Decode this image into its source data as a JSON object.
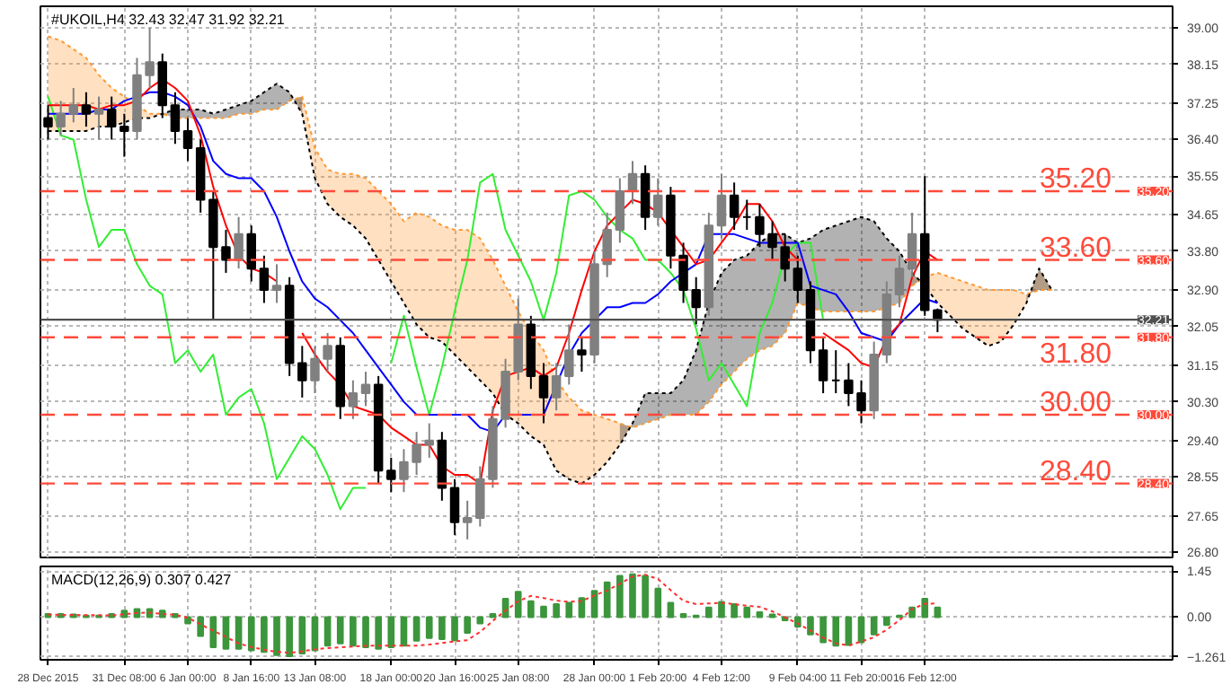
{
  "chart_data": [
    {
      "type": "candlestick",
      "title": "#UKOIL,H4 32.43 32.47 31.92 32.21",
      "categories": [
        null,
        null,
        null,
        null,
        null,
        null,
        null,
        null,
        null,
        null,
        null,
        null,
        null,
        null,
        null,
        null,
        null,
        null,
        null,
        null,
        null,
        null,
        null,
        null,
        null,
        null,
        null,
        null,
        null,
        null,
        null,
        null,
        null,
        null,
        null,
        null,
        null,
        null,
        null,
        null,
        null,
        null,
        null,
        null,
        null,
        null,
        null,
        null,
        null,
        null,
        null,
        null,
        null,
        null,
        null,
        null,
        null,
        null,
        null,
        null,
        null,
        null,
        null,
        null,
        null,
        null,
        null,
        null,
        null,
        null,
        null,
        null,
        null,
        null,
        null,
        null,
        null,
        null,
        null,
        null,
        null,
        null,
        null,
        null,
        null,
        null,
        null,
        null,
        null
      ],
      "ohlc": [
        [
          36.9,
          37.2,
          36.4,
          36.7
        ],
        [
          36.7,
          37.3,
          36.5,
          37.0
        ],
        [
          37.0,
          37.6,
          36.8,
          37.2
        ],
        [
          37.2,
          37.5,
          36.7,
          37.0
        ],
        [
          37.0,
          37.4,
          36.4,
          37.1
        ],
        [
          37.1,
          37.4,
          36.4,
          36.7
        ],
        [
          36.7,
          37.0,
          36.0,
          36.6
        ],
        [
          36.6,
          38.3,
          36.4,
          37.9
        ],
        [
          37.9,
          39.0,
          37.6,
          38.2
        ],
        [
          38.2,
          38.4,
          36.9,
          37.2
        ],
        [
          37.2,
          37.5,
          36.3,
          36.6
        ],
        [
          36.6,
          36.9,
          35.9,
          36.2
        ],
        [
          36.2,
          36.4,
          34.7,
          35.0
        ],
        [
          35.0,
          35.2,
          32.2,
          33.9
        ],
        [
          33.9,
          34.3,
          33.3,
          33.6
        ],
        [
          33.6,
          34.6,
          33.4,
          34.2
        ],
        [
          34.2,
          34.4,
          33.1,
          33.4
        ],
        [
          33.4,
          33.7,
          32.6,
          32.9
        ],
        [
          32.9,
          33.5,
          32.6,
          33.0
        ],
        [
          33.0,
          33.2,
          30.9,
          31.2
        ],
        [
          31.2,
          31.6,
          30.4,
          30.8
        ],
        [
          30.8,
          31.6,
          30.5,
          31.3
        ],
        [
          31.3,
          31.9,
          31.0,
          31.6
        ],
        [
          31.6,
          31.8,
          29.9,
          30.2
        ],
        [
          30.2,
          30.8,
          29.9,
          30.5
        ],
        [
          30.5,
          31.0,
          30.2,
          30.7
        ],
        [
          30.7,
          30.9,
          28.4,
          28.7
        ],
        [
          28.7,
          29.0,
          28.2,
          28.5
        ],
        [
          28.5,
          29.2,
          28.2,
          28.9
        ],
        [
          28.9,
          29.6,
          28.6,
          29.3
        ],
        [
          29.3,
          29.8,
          29.0,
          29.4
        ],
        [
          29.4,
          29.6,
          28.0,
          28.3
        ],
        [
          28.3,
          28.5,
          27.2,
          27.5
        ],
        [
          27.5,
          28.0,
          27.1,
          27.6
        ],
        [
          27.6,
          28.8,
          27.4,
          28.5
        ],
        [
          28.5,
          30.2,
          28.3,
          29.9
        ],
        [
          29.9,
          31.3,
          29.7,
          31.0
        ],
        [
          31.0,
          32.7,
          30.8,
          32.1
        ],
        [
          32.1,
          32.3,
          30.6,
          30.9
        ],
        [
          30.9,
          31.2,
          29.8,
          30.4
        ],
        [
          30.4,
          31.2,
          30.1,
          30.9
        ],
        [
          30.9,
          32.1,
          30.7,
          31.5
        ],
        [
          31.5,
          31.8,
          31.0,
          31.4
        ],
        [
          31.4,
          33.8,
          31.2,
          33.5
        ],
        [
          33.5,
          34.7,
          33.2,
          34.3
        ],
        [
          34.3,
          35.5,
          34.0,
          35.2
        ],
        [
          35.2,
          35.9,
          34.9,
          35.6
        ],
        [
          35.6,
          35.8,
          34.3,
          34.6
        ],
        [
          34.6,
          35.5,
          34.4,
          35.1
        ],
        [
          35.1,
          35.3,
          33.4,
          33.7
        ],
        [
          33.7,
          34.0,
          32.6,
          32.9
        ],
        [
          32.9,
          33.2,
          32.1,
          32.5
        ],
        [
          32.5,
          34.7,
          32.3,
          34.4
        ],
        [
          34.4,
          35.6,
          34.1,
          35.1
        ],
        [
          35.1,
          35.4,
          34.3,
          34.6
        ],
        [
          34.6,
          35.0,
          34.3,
          34.6
        ],
        [
          34.6,
          34.9,
          33.9,
          34.2
        ],
        [
          34.2,
          34.5,
          33.6,
          33.9
        ],
        [
          33.9,
          34.2,
          33.1,
          33.4
        ],
        [
          33.4,
          33.7,
          32.6,
          32.9
        ],
        [
          32.9,
          33.1,
          31.2,
          31.5
        ],
        [
          31.5,
          31.8,
          30.5,
          30.8
        ],
        [
          30.8,
          31.5,
          30.5,
          30.8
        ],
        [
          30.8,
          31.2,
          30.2,
          30.5
        ],
        [
          30.5,
          30.8,
          29.8,
          30.1
        ],
        [
          30.1,
          31.7,
          29.9,
          31.4
        ],
        [
          31.4,
          33.1,
          31.2,
          32.8
        ],
        [
          32.8,
          33.7,
          32.5,
          33.4
        ],
        [
          33.4,
          34.7,
          33.2,
          34.2
        ],
        [
          34.2,
          35.55,
          32.3,
          32.43
        ],
        [
          32.43,
          32.47,
          31.92,
          32.21
        ],
        null,
        null,
        null,
        null,
        null,
        null,
        null,
        null,
        null,
        null,
        null,
        null,
        null,
        null,
        null,
        null,
        null,
        null
      ],
      "colors": [
        "#000000",
        "#808080",
        "#808080",
        "#000000",
        "#808080",
        "#000000",
        "#000000",
        "#808080",
        "#808080",
        "#000000",
        "#000000",
        "#000000",
        "#000000",
        "#000000",
        "#000000",
        "#808080",
        "#000000",
        "#000000",
        "#808080",
        "#000000",
        "#000000",
        "#808080",
        "#808080",
        "#000000",
        "#808080",
        "#808080",
        "#000000",
        "#000000",
        "#808080",
        "#808080",
        "#808080",
        "#000000",
        "#000000",
        "#808080",
        "#808080",
        "#808080",
        "#808080",
        "#808080",
        "#000000",
        "#000000",
        "#808080",
        "#808080",
        "#000000",
        "#808080",
        "#808080",
        "#808080",
        "#808080",
        "#000000",
        "#808080",
        "#000000",
        "#000000",
        "#000000",
        "#808080",
        "#808080",
        "#000000",
        "#000000",
        "#000000",
        "#000000",
        "#000000",
        "#000000",
        "#000000",
        "#000000",
        "#000000",
        "#000000",
        "#000000",
        "#808080",
        "#808080",
        "#808080",
        "#808080",
        "#000000",
        "#000000",
        null,
        null,
        null,
        null,
        null,
        null,
        null,
        null,
        null,
        null,
        null,
        null,
        null,
        null,
        null,
        null,
        null,
        null
      ],
      "series": [
        {
          "type": "line",
          "color": "#ff9933",
          "line_style": "dotted",
          "upper": [
            38.8,
            38.7,
            38.5,
            38.3,
            37.9,
            37.6,
            37.4,
            37.2,
            37.0,
            37.0,
            null,
            null,
            null,
            null,
            null,
            null,
            null,
            null,
            null,
            37.3,
            37.4,
            36.2,
            35.7,
            35.6,
            35.6,
            35.5,
            35.2,
            34.9,
            34.5,
            34.7,
            34.6,
            34.4,
            34.3,
            34.3,
            34.1,
            33.6,
            33.0,
            32.4,
            31.9,
            31.5,
            30.8,
            30.4,
            30.1,
            30.0,
            29.9,
            29.8,
            29.7,
            null,
            null,
            null,
            null,
            null,
            null,
            null,
            null,
            null,
            null,
            null,
            null,
            null,
            null,
            null,
            null,
            null,
            null,
            null,
            null,
            null,
            33.0,
            33.2,
            33.3,
            33.2,
            33.1,
            33.0,
            32.9,
            32.9,
            32.9,
            32.8,
            32.9,
            32.9,
            null,
            null,
            null,
            null,
            null,
            null,
            null,
            null,
            null
          ],
          "lower": [
            36.6,
            36.6,
            36.6,
            36.6,
            36.7,
            36.7,
            36.8,
            36.9,
            36.9,
            37.0,
            null,
            null,
            null,
            null,
            null,
            null,
            null,
            null,
            null,
            37.5,
            37.0,
            35.5,
            34.9,
            34.6,
            34.4,
            34.1,
            33.6,
            33.1,
            32.6,
            32.1,
            31.8,
            31.7,
            31.4,
            31.1,
            30.8,
            30.5,
            30.0,
            29.8,
            29.5,
            29.3,
            28.7,
            28.5,
            28.4,
            28.6,
            28.9,
            29.3,
            29.8,
            null,
            null,
            null,
            null,
            null,
            null,
            null,
            null,
            null,
            null,
            null,
            null,
            null,
            null,
            null,
            null,
            null,
            null,
            null,
            null,
            null,
            33.3,
            33.0,
            32.6,
            32.3,
            32.0,
            31.8,
            31.6,
            31.7,
            32.1,
            32.6,
            33.4,
            32.9,
            null,
            null,
            null,
            null,
            null,
            null,
            null,
            null,
            null
          ],
          "values": [
            38.8,
            38.7,
            38.5,
            38.3,
            37.9,
            37.6,
            37.4,
            37.2,
            37.0,
            37.0,
            36.9,
            36.9,
            36.9,
            36.9,
            36.9,
            37.0,
            37.0,
            37.1,
            37.1,
            37.3,
            37.4,
            36.2,
            35.7,
            35.6,
            35.6,
            35.5,
            35.2,
            34.9,
            34.5,
            34.7,
            34.6,
            34.4,
            34.3,
            34.3,
            34.1,
            33.6,
            33.0,
            32.4,
            31.9,
            31.5,
            30.8,
            30.4,
            30.1,
            30.0,
            29.9,
            29.8,
            29.7,
            29.8,
            29.9,
            30.0,
            30.0,
            30.0,
            30.3,
            30.7,
            31.0,
            31.3,
            31.5,
            31.6,
            31.9,
            32.6,
            32.5,
            32.4,
            32.4,
            32.4,
            32.4,
            32.4,
            32.5,
            32.6,
            33.0,
            33.2,
            33.3,
            33.2,
            33.1,
            33.0,
            32.9,
            32.9,
            32.9,
            32.8,
            32.9,
            32.9,
            null,
            null,
            null,
            null,
            null,
            null,
            null,
            null,
            null
          ]
        },
        {
          "type": "line",
          "color": "#000000",
          "line_style": "dotted",
          "upper": [
            null,
            null,
            null,
            null,
            null,
            null,
            null,
            null,
            null,
            37.0,
            37.1,
            37.1,
            37.1,
            37.0,
            37.1,
            37.2,
            37.3,
            37.5,
            37.7,
            37.5,
            37.0,
            null,
            null,
            null,
            null,
            null,
            null,
            null,
            null,
            null,
            null,
            null,
            null,
            null,
            null,
            null,
            null,
            null,
            null,
            null,
            null,
            null,
            null,
            null,
            null,
            29.3,
            29.8,
            30.5,
            30.5,
            30.5,
            30.8,
            31.5,
            32.6,
            33.3,
            33.6,
            33.7,
            34.0,
            34.2,
            34.2,
            34.0,
            34.1,
            34.3,
            34.4,
            34.5,
            34.6,
            34.5,
            34.1,
            33.8,
            33.3,
            33.0,
            null,
            null,
            null,
            null,
            null,
            null,
            null,
            32.6,
            33.4,
            32.9,
            null,
            null,
            null,
            null,
            null,
            null,
            null,
            null,
            null
          ],
          "lower": [
            null,
            null,
            null,
            null,
            null,
            null,
            null,
            null,
            null,
            37.0,
            36.9,
            36.9,
            36.9,
            36.9,
            36.9,
            37.0,
            37.0,
            37.1,
            37.1,
            37.3,
            37.4,
            null,
            null,
            null,
            null,
            null,
            null,
            null,
            null,
            null,
            null,
            null,
            null,
            null,
            null,
            null,
            null,
            null,
            null,
            null,
            null,
            null,
            null,
            null,
            null,
            29.8,
            29.7,
            29.8,
            29.9,
            30.0,
            30.0,
            30.0,
            30.3,
            30.7,
            31.0,
            31.3,
            31.5,
            31.6,
            31.9,
            32.6,
            32.5,
            32.4,
            32.4,
            32.4,
            32.4,
            32.4,
            32.5,
            32.6,
            33.0,
            33.2,
            null,
            null,
            null,
            null,
            null,
            null,
            null,
            32.8,
            32.9,
            32.9,
            null,
            null,
            null,
            null,
            null,
            null,
            null,
            null,
            null
          ],
          "values": [
            36.6,
            36.6,
            36.6,
            36.6,
            36.7,
            36.7,
            36.8,
            36.9,
            36.9,
            37.0,
            37.1,
            37.1,
            37.1,
            37.0,
            37.1,
            37.2,
            37.3,
            37.5,
            37.7,
            37.5,
            37.0,
            35.5,
            34.9,
            34.6,
            34.4,
            34.1,
            33.6,
            33.1,
            32.6,
            32.1,
            31.8,
            31.7,
            31.4,
            31.1,
            30.8,
            30.5,
            30.0,
            29.8,
            29.5,
            29.3,
            28.7,
            28.5,
            28.4,
            28.6,
            28.9,
            29.3,
            29.8,
            30.5,
            30.5,
            30.5,
            30.8,
            31.5,
            32.6,
            33.3,
            33.6,
            33.7,
            34.0,
            34.2,
            34.2,
            34.0,
            34.1,
            34.3,
            34.4,
            34.5,
            34.6,
            34.5,
            34.1,
            33.8,
            33.3,
            33.0,
            32.6,
            32.3,
            32.0,
            31.8,
            31.6,
            31.7,
            32.1,
            32.6,
            33.4,
            32.9,
            null,
            null,
            null,
            null,
            null,
            null,
            null,
            null,
            null
          ]
        },
        {
          "type": "line",
          "color": "#33ee33",
          "line_style": "solid",
          "values": [
            37.4,
            36.5,
            36.4,
            35.0,
            33.9,
            34.3,
            34.3,
            33.5,
            33.0,
            32.8,
            31.2,
            31.5,
            31.0,
            31.4,
            30.0,
            30.4,
            30.6,
            29.8,
            28.5,
            29.0,
            29.5,
            29.2,
            28.6,
            27.8,
            28.3,
            28.3,
            null,
            31.2,
            32.3,
            31.1,
            30.0,
            31.1,
            32.4,
            33.6,
            35.4,
            35.6,
            34.3,
            33.7,
            33.1,
            32.2,
            33.3,
            35.1,
            35.2,
            35.0,
            34.6,
            34.3,
            34.1,
            33.6,
            33.6,
            33.3,
            32.9,
            32.0,
            30.8,
            31.2,
            30.7,
            30.2,
            31.9,
            32.6,
            33.7,
            34.0,
            34.0,
            32.2,
            null,
            null,
            null,
            null,
            null,
            null,
            null,
            null,
            null,
            null,
            null,
            null,
            null,
            null,
            null,
            null,
            null,
            null,
            null,
            null,
            null,
            null,
            null,
            null,
            null,
            null,
            null
          ]
        },
        {
          "type": "line",
          "color": "#0000ff",
          "line_style": "solid",
          "values": [
            37.0,
            37.0,
            37.0,
            37.0,
            37.1,
            37.1,
            37.3,
            37.4,
            37.5,
            37.5,
            37.4,
            37.2,
            36.7,
            35.9,
            35.6,
            35.5,
            35.5,
            35.2,
            34.6,
            33.8,
            33.1,
            32.7,
            32.5,
            32.2,
            31.9,
            31.5,
            31.1,
            30.7,
            30.3,
            30.0,
            30.0,
            30.0,
            30.0,
            30.0,
            29.7,
            29.6,
            30.0,
            30.0,
            30.0,
            30.0,
            30.7,
            31.4,
            31.9,
            32.2,
            32.5,
            32.5,
            32.6,
            32.6,
            32.8,
            33.1,
            33.3,
            33.5,
            34.2,
            34.2,
            34.2,
            34.1,
            34.0,
            34.0,
            34.0,
            34.0,
            33.0,
            32.9,
            32.8,
            32.4,
            31.9,
            31.8,
            31.7,
            32.1,
            32.4,
            32.7,
            32.6,
            null,
            null,
            null,
            null,
            null,
            null,
            null,
            null,
            null,
            null,
            null,
            null,
            null,
            null,
            null,
            null,
            null,
            null
          ]
        },
        {
          "type": "line",
          "color": "#ff0000",
          "line_style": "solid",
          "values": [
            37.2,
            37.2,
            37.2,
            37.2,
            37.1,
            37.2,
            37.2,
            37.3,
            37.6,
            37.8,
            37.6,
            37.3,
            36.5,
            35.3,
            34.4,
            33.7,
            33.4,
            33.3,
            33.1,
            null,
            31.9,
            31.4,
            31.0,
            30.7,
            30.2,
            30.1,
            30.0,
            29.7,
            29.5,
            29.3,
            29.3,
            28.8,
            28.6,
            28.6,
            28.4,
            30.1,
            30.9,
            31.0,
            31.1,
            30.9,
            31.1,
            31.9,
            32.9,
            33.8,
            34.4,
            34.7,
            35.0,
            34.9,
            34.7,
            34.3,
            33.9,
            33.5,
            33.6,
            34.0,
            34.4,
            34.9,
            34.9,
            34.5,
            33.9,
            33.6,
            null,
            31.9,
            31.7,
            31.5,
            31.2,
            31.1,
            31.8,
            32.1,
            33.2,
            33.8,
            33.6,
            null,
            null,
            null,
            null,
            null,
            null,
            null,
            null,
            null,
            null,
            null,
            null,
            null,
            null,
            null,
            null,
            null,
            null
          ]
        }
      ],
      "ref_lines": [
        {
          "axis": "y",
          "value": 35.2,
          "label": "35.20",
          "color": "#ff4a3a",
          "line_style": "dashed"
        },
        {
          "axis": "y",
          "value": 33.6,
          "label": "33.60",
          "color": "#ff4a3a",
          "line_style": "dashed"
        },
        {
          "axis": "y",
          "value": 31.8,
          "label": "31.80",
          "color": "#ff4a3a",
          "line_style": "dashed"
        },
        {
          "axis": "y",
          "value": 30.0,
          "label": "30.00",
          "color": "#ff4a3a",
          "line_style": "dashed"
        },
        {
          "axis": "y",
          "value": 28.4,
          "label": "28.40",
          "color": "#ff4a3a",
          "line_style": "dashed"
        },
        {
          "axis": "y",
          "value": 32.21,
          "label": "32.21",
          "color": "#505050",
          "line_style": "solid"
        }
      ],
      "ylim": [
        26.68,
        39.5
      ],
      "yticks": [
        {
          "value": 39,
          "label": "39.00"
        },
        {
          "value": 38.15,
          "label": "38.15"
        },
        {
          "value": 37.25,
          "label": "37.25"
        },
        {
          "value": 36.4,
          "label": "36.40"
        },
        {
          "value": 35.55,
          "label": "35.55"
        },
        {
          "value": 34.65,
          "label": "34.65"
        },
        {
          "value": 33.8,
          "label": "33.80"
        },
        {
          "value": 32.9,
          "label": "32.90"
        },
        {
          "value": 32.05,
          "label": "32.05"
        },
        {
          "value": 31.15,
          "label": "31.15"
        },
        {
          "value": 30.3,
          "label": "30.30"
        },
        {
          "value": 29.4,
          "label": "29.40"
        },
        {
          "value": 28.55,
          "label": "28.55"
        },
        {
          "value": 27.65,
          "label": "27.65"
        },
        {
          "value": 26.8,
          "label": "26.80"
        }
      ],
      "tick_labels": "y",
      "grid": true
    },
    {
      "type": "bar",
      "title": "MACD(12,26,9) 0.307 0.427",
      "categories": [
        "28 Dec 2015",
        null,
        null,
        null,
        null,
        null,
        "31 Dec 08:00",
        null,
        null,
        null,
        null,
        "6 Jan 00:00",
        null,
        null,
        null,
        null,
        "8 Jan 16:00",
        null,
        null,
        null,
        null,
        "13 Jan 08:00",
        null,
        null,
        null,
        null,
        null,
        "18 Jan 00:00",
        null,
        null,
        null,
        null,
        "20 Jan 16:00",
        null,
        null,
        null,
        null,
        "25 Jan 08:00",
        null,
        null,
        null,
        null,
        null,
        "28 Jan 00:00",
        null,
        null,
        null,
        null,
        "1 Feb 20:00",
        null,
        null,
        null,
        null,
        "4 Feb 12:00",
        null,
        null,
        null,
        null,
        null,
        "9 Feb 04:00",
        null,
        null,
        null,
        null,
        "11 Feb 20:00",
        null,
        null,
        null,
        null,
        "16 Feb 12:00",
        null,
        null,
        null,
        null,
        null,
        null,
        null,
        null,
        null,
        null,
        null,
        null,
        null,
        null,
        null,
        null,
        null,
        null,
        null
      ],
      "series": [
        {
          "type": "bar",
          "color": "#3c963c",
          "values": [
            0.1,
            0.1,
            0.08,
            0.05,
            0.05,
            0.1,
            0.2,
            0.25,
            0.25,
            0.2,
            0.1,
            -0.2,
            -0.6,
            -0.95,
            -1.0,
            -1.0,
            -1.05,
            -1.1,
            -1.2,
            -1.24,
            -1.15,
            -1.05,
            -0.9,
            -0.83,
            -0.9,
            -0.95,
            -1.0,
            -0.95,
            -0.9,
            -0.75,
            -0.66,
            -0.7,
            -0.74,
            -0.5,
            -0.2,
            0.1,
            0.58,
            0.8,
            0.5,
            0.33,
            0.41,
            0.45,
            0.6,
            0.83,
            1.1,
            1.3,
            1.35,
            1.3,
            0.9,
            0.45,
            0.1,
            0.05,
            0.3,
            0.48,
            0.41,
            0.3,
            0.15,
            0.08,
            -0.1,
            -0.3,
            -0.55,
            -0.8,
            -0.9,
            -0.88,
            -0.8,
            -0.55,
            -0.25,
            0.05,
            0.3,
            0.58,
            0.3,
            null,
            null,
            null,
            null,
            null,
            null,
            null,
            null,
            null,
            null,
            null,
            null,
            null,
            null,
            null,
            null,
            null,
            null
          ]
        },
        {
          "type": "line",
          "color": "#ff3030",
          "line_style": "dotted",
          "values": [
            0.08,
            0.07,
            0.07,
            0.06,
            0.06,
            0.05,
            0.09,
            0.13,
            0.14,
            0.1,
            0.07,
            -0.02,
            -0.23,
            -0.43,
            -0.63,
            -0.83,
            -0.95,
            -1.03,
            -1.1,
            -1.13,
            -1.08,
            -1.02,
            -0.98,
            -0.96,
            -0.93,
            -0.91,
            -0.9,
            -0.9,
            -0.9,
            -0.9,
            -0.87,
            -0.82,
            -0.77,
            -0.73,
            -0.47,
            -0.12,
            0.2,
            0.5,
            0.67,
            0.6,
            0.52,
            0.48,
            0.51,
            0.68,
            0.84,
            1.05,
            1.28,
            1.34,
            1.2,
            0.85,
            0.51,
            0.41,
            0.43,
            0.45,
            0.41,
            0.36,
            0.32,
            0.18,
            -0.01,
            -0.2,
            -0.43,
            -0.65,
            -0.83,
            -0.9,
            -0.77,
            -0.64,
            -0.4,
            -0.1,
            0.25,
            0.42,
            0.43,
            null,
            null,
            null,
            null,
            null,
            null,
            null,
            null,
            null,
            null,
            null,
            null,
            null,
            null,
            null,
            null,
            null,
            null
          ]
        }
      ],
      "ylim": [
        -1.35,
        1.6
      ],
      "yticks": [
        1.45,
        {
          "value": 0,
          "label": "0.00"
        },
        -1.261
      ],
      "grid": true
    }
  ]
}
